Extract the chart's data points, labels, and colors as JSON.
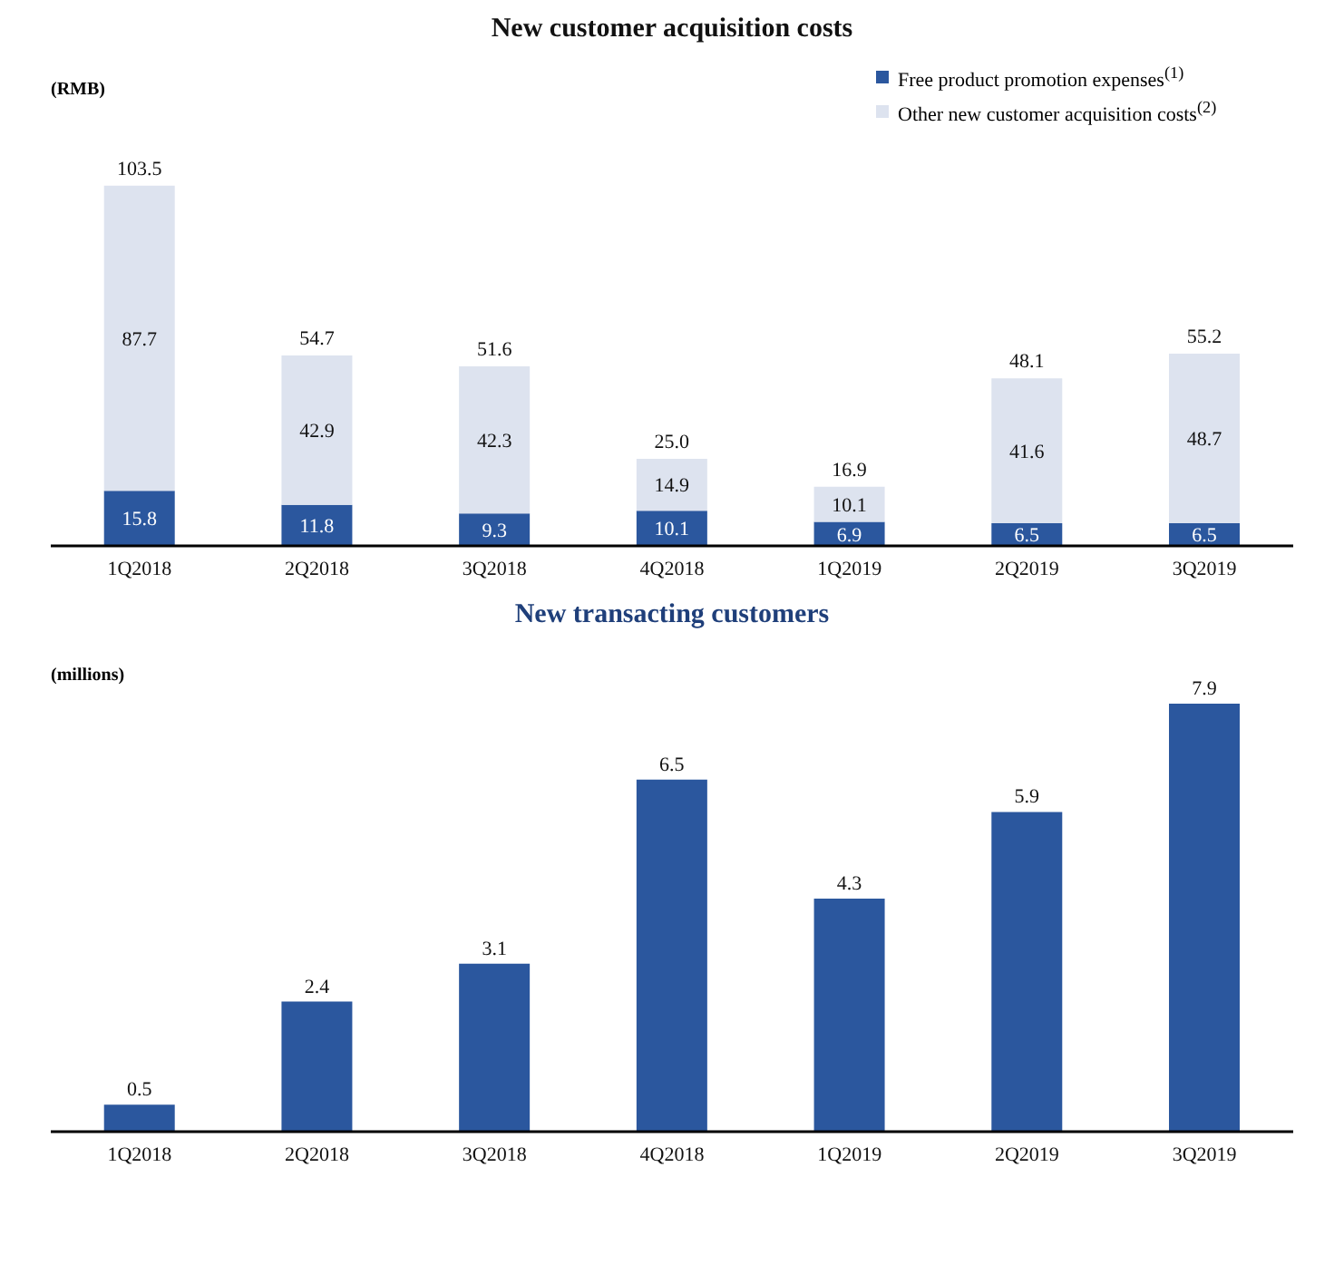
{
  "chart_data": [
    {
      "type": "bar",
      "title": "New customer acquisition costs",
      "ylabel": "(RMB)",
      "categories": [
        "1Q2018",
        "2Q2018",
        "3Q2018",
        "4Q2018",
        "1Q2019",
        "2Q2019",
        "3Q2019"
      ],
      "stacked": true,
      "data_labels": true,
      "legend": "top right",
      "series": [
        {
          "name": "Free product promotion expenses$^{(1)}$",
          "color": "#2b579e",
          "values": [
            15.8,
            11.8,
            9.3,
            10.1,
            6.9,
            6.5,
            6.5
          ]
        },
        {
          "name": "Other new customer acquisition costs$^{(2)}$",
          "color": "#dde3ef",
          "values": [
            87.7,
            42.9,
            42.3,
            14.9,
            10.1,
            41.6,
            48.7
          ]
        }
      ],
      "totals": [
        "103.5",
        "54.7",
        "51.6",
        "25.0",
        "16.9",
        "48.1",
        "55.2"
      ]
    },
    {
      "type": "bar",
      "title": "New transacting customers",
      "ylabel": "(millions)",
      "categories": [
        "1Q2018",
        "2Q2018",
        "3Q2018",
        "4Q2018",
        "1Q2019",
        "2Q2019",
        "3Q2019"
      ],
      "data_labels": true,
      "color": "#2b579e",
      "values": [
        0.5,
        2.4,
        3.1,
        6.5,
        4.3,
        5.9,
        7.9
      ]
    }
  ]
}
